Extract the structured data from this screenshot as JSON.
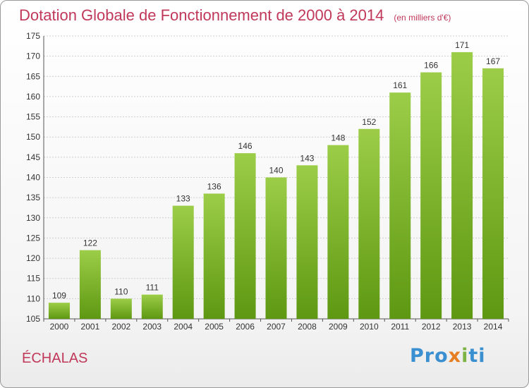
{
  "title": "Dotation Globale de Fonctionnement de 2000 à 2014",
  "subtitle": "(en milliers d'€)",
  "location": "ÉCHALAS",
  "logo_text": "Proxiti",
  "colors": {
    "accent": "#c0385a",
    "bar_top": "#9ccd48",
    "bar_bottom": "#5e9812"
  },
  "chart_data": {
    "type": "bar",
    "title": "Dotation Globale de Fonctionnement de 2000 à 2014",
    "subtitle": "(en milliers d'€)",
    "categories": [
      "2000",
      "2001",
      "2002",
      "2003",
      "2004",
      "2005",
      "2006",
      "2007",
      "2008",
      "2009",
      "2010",
      "2011",
      "2012",
      "2013",
      "2014"
    ],
    "values": [
      109,
      122,
      110,
      111,
      133,
      136,
      146,
      140,
      143,
      148,
      152,
      161,
      166,
      171,
      167
    ],
    "ylim": [
      105,
      175
    ],
    "yticks": [
      105,
      110,
      115,
      120,
      125,
      130,
      135,
      140,
      145,
      150,
      155,
      160,
      165,
      170,
      175
    ],
    "grid": true,
    "data_labels": true,
    "legend": "none"
  }
}
